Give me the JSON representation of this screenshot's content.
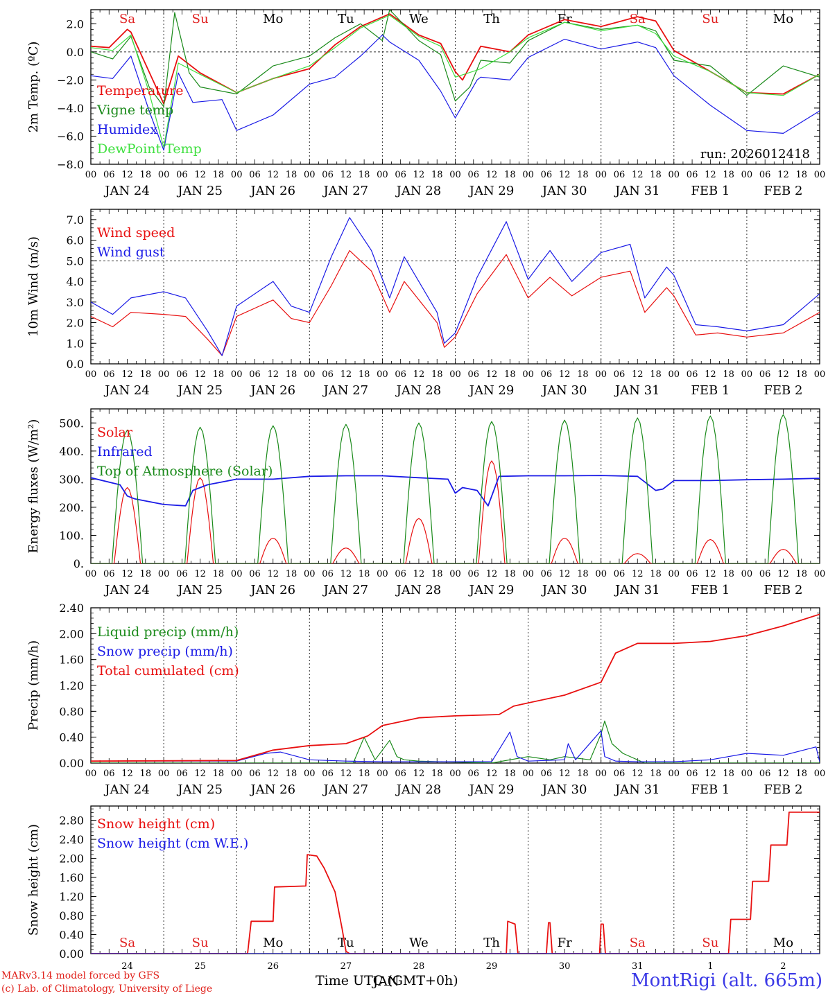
{
  "run_label": "run: 2026012418",
  "footer": {
    "credit_line1": "MARv3.14 model forced by GFS",
    "credit_line2": "(c) Lab. of Climatology, University of Liege",
    "time_label": "Time UTC (GMT+0h)",
    "month_label": "JAN",
    "station": "MontRigi (alt. 665m)"
  },
  "colors": {
    "red": "#e81010",
    "green": "#1a8a1a",
    "blue": "#1a1ae6",
    "lightgreen": "#40e040",
    "weekend": "#e02020"
  },
  "chart_data": [
    {
      "type": "line",
      "title": "2m Temperature",
      "ylabel": "2m Temp. (ºC)",
      "ylim": [
        -8,
        3
      ],
      "yticks": [
        "−8.0",
        "−6.0",
        "−4.0",
        "−2.0",
        "0.0",
        "2.0"
      ],
      "yticks_values": [
        -8,
        -6,
        -4,
        -2,
        0,
        2
      ],
      "hlines": [
        0
      ],
      "x_unit": "days since 2026-01-24 00 UTC",
      "x_range": [
        0,
        10
      ],
      "day_names": [
        "Sa",
        "Su",
        "Mo",
        "Tu",
        "We",
        "Th",
        "Fr",
        "Sa",
        "Su",
        "Mo"
      ],
      "date_labels": [
        "JAN 24",
        "JAN 25",
        "JAN 26",
        "JAN 27",
        "JAN 28",
        "JAN 29",
        "JAN 30",
        "JAN 31",
        "FEB  1",
        "FEB  2"
      ],
      "hour_ticks": [
        "00",
        "06",
        "12",
        "18"
      ],
      "series": [
        {
          "name": "Temperature",
          "color": "red",
          "x": [
            0,
            0.25,
            0.5,
            0.55,
            1.0,
            1.2,
            1.5,
            2.0,
            2.5,
            3.0,
            3.35,
            3.7,
            4.1,
            4.5,
            4.8,
            5.0,
            5.1,
            5.35,
            5.75,
            6.0,
            6.5,
            7.0,
            7.5,
            7.75,
            8.0,
            8.5,
            9.0,
            9.5,
            10.0
          ],
          "y": [
            0.4,
            0.3,
            1.6,
            1.4,
            -3.7,
            -0.3,
            -1.5,
            -2.9,
            -1.9,
            -1.2,
            0.5,
            1.8,
            2.7,
            1.2,
            0.6,
            -1.4,
            -2.0,
            0.4,
            0.0,
            1.2,
            2.3,
            1.8,
            2.5,
            2.2,
            0.1,
            -1.4,
            -2.9,
            -3.0,
            -1.6
          ]
        },
        {
          "name": "Vigne temp",
          "color": "green",
          "x": [
            0,
            0.3,
            0.55,
            0.8,
            1.0,
            1.15,
            1.35,
            1.5,
            2.0,
            2.5,
            3.0,
            3.35,
            3.7,
            4.0,
            4.1,
            4.5,
            4.8,
            5.0,
            5.2,
            5.35,
            5.75,
            6.0,
            6.5,
            7.0,
            7.5,
            7.75,
            8.0,
            8.5,
            9.0,
            9.5,
            10.0
          ],
          "y": [
            0.0,
            -0.5,
            1.1,
            -2.5,
            -3.9,
            2.8,
            -1.5,
            -2.5,
            -3.0,
            -1.0,
            -0.3,
            1.0,
            2.0,
            0.8,
            3.0,
            0.8,
            -0.2,
            -3.5,
            -2.5,
            -0.6,
            -0.8,
            0.8,
            2.1,
            1.6,
            1.9,
            1.5,
            -0.6,
            -1.0,
            -3.1,
            -1.0,
            -1.8
          ]
        },
        {
          "name": "Humidex",
          "color": "blue",
          "x": [
            0,
            0.3,
            0.55,
            0.8,
            1.0,
            1.2,
            1.4,
            1.8,
            2.0,
            2.5,
            3.0,
            3.35,
            3.7,
            4.0,
            4.1,
            4.5,
            4.8,
            5.0,
            5.3,
            5.35,
            5.75,
            6.0,
            6.5,
            7.0,
            7.5,
            7.75,
            8.0,
            8.5,
            9.0,
            9.5,
            10.0
          ],
          "y": [
            -1.7,
            -1.9,
            -0.3,
            -4.2,
            -7.0,
            -1.5,
            -3.6,
            -3.4,
            -5.6,
            -4.5,
            -2.3,
            -1.8,
            -0.3,
            1.2,
            0.7,
            -0.6,
            -2.8,
            -4.7,
            -2.0,
            -1.8,
            -2.0,
            -0.4,
            0.9,
            0.2,
            0.7,
            0.3,
            -1.7,
            -3.8,
            -5.6,
            -5.8,
            -4.2
          ]
        },
        {
          "name": "DewPoint Temp",
          "color": "lightgreen",
          "x": [
            0,
            0.3,
            0.55,
            0.8,
            1.0,
            1.2,
            1.5,
            2.0,
            2.5,
            3.0,
            3.35,
            3.7,
            4.1,
            4.5,
            4.8,
            5.0,
            5.3,
            5.35,
            5.75,
            6.0,
            6.5,
            7.0,
            7.5,
            7.75,
            8.0,
            8.5,
            9.0,
            9.5,
            10.0
          ],
          "y": [
            0.3,
            0.1,
            1.2,
            -2.9,
            -6.8,
            -0.8,
            -1.6,
            -2.9,
            -1.9,
            -1.0,
            0.3,
            1.7,
            2.6,
            1.1,
            0.4,
            -1.8,
            -1.3,
            -1.2,
            0.0,
            1.0,
            2.1,
            1.5,
            1.9,
            1.3,
            -0.3,
            -1.4,
            -2.9,
            -3.1,
            -1.6
          ]
        }
      ]
    },
    {
      "type": "line",
      "title": "10m Wind",
      "ylabel": "10m Wind (m/s)",
      "ylim": [
        0,
        7.5
      ],
      "yticks": [
        "0.0",
        "1.0",
        "2.0",
        "3.0",
        "4.0",
        "5.0",
        "6.0",
        "7.0"
      ],
      "yticks_values": [
        0,
        1,
        2,
        3,
        4,
        5,
        6,
        7
      ],
      "hlines": [
        5.0
      ],
      "series": [
        {
          "name": "Wind speed",
          "color": "red",
          "x": [
            0,
            0.3,
            0.55,
            1.0,
            1.3,
            1.6,
            1.8,
            2.0,
            2.5,
            2.75,
            3.0,
            3.3,
            3.55,
            3.85,
            4.1,
            4.3,
            4.75,
            4.85,
            5.0,
            5.3,
            5.7,
            6.0,
            6.3,
            6.6,
            7.0,
            7.4,
            7.6,
            7.9,
            8.0,
            8.3,
            8.6,
            9.0,
            9.5,
            10.0
          ],
          "y": [
            2.3,
            1.8,
            2.5,
            2.4,
            2.3,
            1.2,
            0.4,
            2.3,
            3.1,
            2.2,
            2.0,
            3.8,
            5.5,
            4.5,
            2.5,
            4.0,
            2.0,
            0.8,
            1.3,
            3.4,
            5.3,
            3.2,
            4.2,
            3.3,
            4.2,
            4.5,
            2.5,
            3.7,
            3.3,
            1.4,
            1.5,
            1.3,
            1.5,
            2.5
          ]
        },
        {
          "name": "Wind gust",
          "color": "blue",
          "x": [
            0,
            0.3,
            0.55,
            1.0,
            1.3,
            1.6,
            1.8,
            2.0,
            2.5,
            2.75,
            3.0,
            3.3,
            3.55,
            3.85,
            4.1,
            4.3,
            4.75,
            4.85,
            5.0,
            5.3,
            5.7,
            6.0,
            6.3,
            6.6,
            7.0,
            7.4,
            7.6,
            7.9,
            8.0,
            8.3,
            8.6,
            9.0,
            9.5,
            10.0
          ],
          "y": [
            3.0,
            2.4,
            3.2,
            3.5,
            3.2,
            1.6,
            0.4,
            2.8,
            4.0,
            2.8,
            2.5,
            5.2,
            7.1,
            5.5,
            3.2,
            5.2,
            2.5,
            1.0,
            1.5,
            4.2,
            6.9,
            4.1,
            5.5,
            4.0,
            5.4,
            5.8,
            3.2,
            4.7,
            4.3,
            1.9,
            1.8,
            1.6,
            1.9,
            3.4
          ]
        }
      ]
    },
    {
      "type": "line",
      "title": "Energy fluxes",
      "ylabel": "Energy fluxes (W/m²)",
      "ylim": [
        0,
        550
      ],
      "yticks": [
        "0.",
        "100.",
        "200.",
        "300.",
        "400.",
        "500."
      ],
      "yticks_values": [
        0,
        100,
        200,
        300,
        400,
        500
      ],
      "hlines": [],
      "series": [
        {
          "name": "Solar",
          "color": "red",
          "peaks": [
            270,
            305,
            90,
            55,
            160,
            365,
            90,
            35,
            85,
            50
          ]
        },
        {
          "name": "Infrared",
          "color": "blue",
          "x": [
            0,
            0.4,
            0.5,
            0.6,
            1.0,
            1.3,
            1.4,
            1.6,
            2.0,
            2.5,
            3.0,
            3.5,
            4.0,
            4.5,
            4.9,
            5.0,
            5.1,
            5.3,
            5.45,
            5.6,
            6.0,
            6.5,
            7.0,
            7.5,
            7.75,
            7.85,
            8.0,
            8.5,
            9.0,
            9.5,
            10.0
          ],
          "y": [
            305,
            280,
            240,
            230,
            210,
            205,
            260,
            280,
            300,
            300,
            310,
            312,
            312,
            305,
            300,
            250,
            270,
            260,
            205,
            310,
            312,
            312,
            313,
            310,
            260,
            265,
            295,
            295,
            298,
            300,
            303
          ]
        },
        {
          "name": "Top of Atmosphere (Solar)",
          "color": "green",
          "peaks": [
            475,
            485,
            490,
            495,
            500,
            505,
            510,
            518,
            525,
            530
          ]
        }
      ]
    },
    {
      "type": "line",
      "title": "Precip",
      "ylabel": "Precip (mm/h)",
      "ylim": [
        0,
        2.4
      ],
      "yticks": [
        "0.00",
        "0.40",
        "0.80",
        "1.20",
        "1.60",
        "2.00",
        "2.40"
      ],
      "yticks_values": [
        0,
        0.4,
        0.8,
        1.2,
        1.6,
        2.0,
        2.4
      ],
      "hlines": [],
      "series": [
        {
          "name": "Liquid precip (mm/h)",
          "color": "green",
          "x": [
            0,
            3.6,
            3.75,
            3.9,
            4.1,
            4.2,
            4.3,
            4.5,
            5.5,
            6.0,
            6.3,
            6.5,
            6.85,
            7.0,
            7.05,
            7.15,
            7.3,
            7.6,
            8.0,
            10.0
          ],
          "y": [
            0,
            0,
            0.4,
            0.05,
            0.35,
            0.1,
            0.05,
            0.03,
            0,
            0.1,
            0.05,
            0.1,
            0.05,
            0.45,
            0.65,
            0.3,
            0.15,
            0,
            0,
            0
          ]
        },
        {
          "name": "Snow precip (mm/h)",
          "color": "blue",
          "x": [
            0,
            2.0,
            2.4,
            2.6,
            3.0,
            3.5,
            4.0,
            5.5,
            5.75,
            5.85,
            6.0,
            6.5,
            6.55,
            6.65,
            7.0,
            7.05,
            7.2,
            7.5,
            8.0,
            8.5,
            9.0,
            9.5,
            9.95,
            10.0
          ],
          "y": [
            0.03,
            0.03,
            0.15,
            0.17,
            0.05,
            0.03,
            0.02,
            0.02,
            0.48,
            0.1,
            0.03,
            0.05,
            0.3,
            0.05,
            0.5,
            0.1,
            0.03,
            0.02,
            0.02,
            0.05,
            0.15,
            0.12,
            0.25,
            0.02
          ]
        },
        {
          "name": "Total cumulated (cm)",
          "color": "red",
          "x": [
            0,
            2.0,
            2.5,
            3.0,
            3.5,
            3.8,
            4.0,
            4.5,
            5.0,
            5.6,
            5.8,
            6.0,
            6.5,
            7.0,
            7.2,
            7.5,
            8.0,
            8.5,
            9.0,
            9.5,
            10.0
          ],
          "y": [
            0.03,
            0.04,
            0.2,
            0.27,
            0.3,
            0.42,
            0.58,
            0.7,
            0.73,
            0.75,
            0.88,
            0.93,
            1.05,
            1.25,
            1.7,
            1.85,
            1.85,
            1.88,
            1.97,
            2.12,
            2.3
          ]
        }
      ]
    },
    {
      "type": "line",
      "title": "Snow height",
      "ylabel": "Snow height (cm)",
      "ylim": [
        0,
        3.1
      ],
      "yticks": [
        "0.00",
        "0.40",
        "0.80",
        "1.20",
        "1.60",
        "2.00",
        "2.40",
        "2.80"
      ],
      "yticks_values": [
        0,
        0.4,
        0.8,
        1.2,
        1.6,
        2.0,
        2.4,
        2.8
      ],
      "hlines": [],
      "bottom_day_numbers": [
        "24",
        "25",
        "26",
        "27",
        "28",
        "29",
        "30",
        "31",
        "1",
        "2"
      ],
      "series": [
        {
          "name": "Snow height (cm)",
          "color": "red",
          "x": [
            0,
            2.15,
            2.2,
            2.5,
            2.52,
            2.95,
            2.97,
            3.1,
            3.2,
            3.35,
            3.45,
            3.5,
            3.55,
            5.7,
            5.72,
            5.82,
            5.86,
            6.25,
            6.28,
            6.3,
            6.33,
            6.98,
            7.0,
            7.03,
            7.06,
            8.75,
            8.78,
            9.05,
            9.08,
            9.3,
            9.33,
            9.55,
            9.58,
            10.0
          ],
          "y": [
            0,
            0,
            0.68,
            0.68,
            1.4,
            1.42,
            2.08,
            2.05,
            1.8,
            1.3,
            0.5,
            0.05,
            0,
            0,
            0.68,
            0.62,
            0,
            0,
            0.65,
            0.65,
            0,
            0,
            0.62,
            0.62,
            0,
            0,
            0.72,
            0.72,
            1.52,
            1.52,
            2.28,
            2.28,
            2.97,
            2.97
          ]
        },
        {
          "name": "Snow height (cm W.E.)",
          "color": "blue",
          "x": [
            0,
            10
          ],
          "y": [
            0,
            0
          ]
        }
      ]
    }
  ]
}
